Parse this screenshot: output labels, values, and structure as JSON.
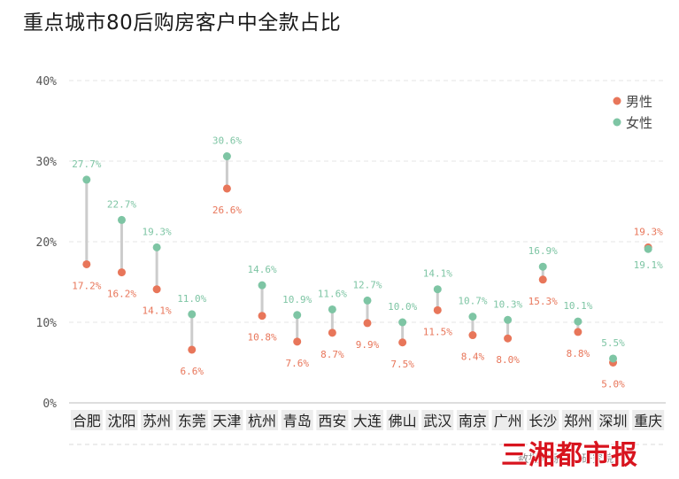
{
  "chart_data": {
    "type": "dumbbell",
    "title": "重点城市80后购房客户中全款占比",
    "categories": [
      "合肥",
      "沈阳",
      "苏州",
      "东莞",
      "天津",
      "杭州",
      "青岛",
      "西安",
      "大连",
      "佛山",
      "武汉",
      "南京",
      "广州",
      "长沙",
      "郑州",
      "深圳",
      "重庆"
    ],
    "series": [
      {
        "name": "男性",
        "color": "#e8765a",
        "values": [
          17.2,
          16.2,
          14.1,
          6.6,
          26.6,
          10.8,
          7.6,
          8.7,
          9.9,
          7.5,
          11.5,
          8.4,
          8.0,
          15.3,
          8.8,
          5.0,
          19.3
        ],
        "labels": [
          "17.2%",
          "16.2%",
          "14.1%",
          "6.6%",
          "26.6%",
          "10.8%",
          "7.6%",
          "8.7%",
          "9.9%",
          "7.5%",
          "11.5%",
          "8.4%",
          "8.0%",
          "15.3%",
          "8.8%",
          "5.0%",
          "19.3%"
        ]
      },
      {
        "name": "女性",
        "color": "#7ec5a4",
        "values": [
          27.7,
          22.7,
          19.3,
          11.0,
          30.6,
          14.6,
          10.9,
          11.6,
          12.7,
          10.0,
          14.1,
          10.7,
          10.3,
          16.9,
          10.1,
          5.5,
          19.1
        ],
        "labels": [
          "27.7%",
          "22.7%",
          "19.3%",
          "11.0%",
          "30.6%",
          "14.6%",
          "10.9%",
          "11.6%",
          "12.7%",
          "10.0%",
          "14.1%",
          "10.7%",
          "10.3%",
          "16.9%",
          "10.1%",
          "5.5%",
          "19.1%"
        ]
      }
    ],
    "y_ticks": [
      "0%",
      "10%",
      "20%",
      "30%",
      "40%"
    ],
    "ylim": [
      0,
      40
    ],
    "grid": true,
    "legend_position": "top-right",
    "source_note": "数据来源：…研究院",
    "logo_text": "三湘都市报"
  },
  "colors": {
    "connector": "#cccccc",
    "grid": "#e6e6e6",
    "category_bg": "#ececec"
  }
}
